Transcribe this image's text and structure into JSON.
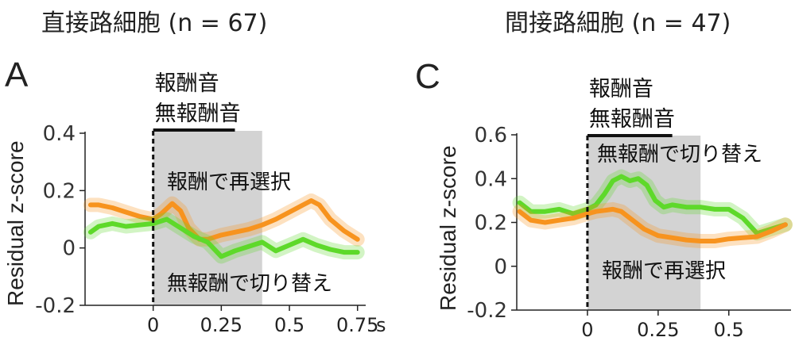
{
  "chart_data": [
    {
      "type": "line",
      "panel_letter": "A",
      "title": "直接路細胞 (n = 67)",
      "xlabel": "",
      "x_unit": "s",
      "ylabel": "Residual z-score",
      "xlim": [
        -0.25,
        0.78
      ],
      "ylim": [
        -0.2,
        0.4
      ],
      "xticks": [
        "0",
        "0.25",
        "0.5",
        "0.75"
      ],
      "xtick_values": [
        0,
        0.25,
        0.5,
        0.75
      ],
      "yticks": [
        "-0.2",
        "0",
        "0.2",
        "0.4"
      ],
      "ytick_values": [
        -0.2,
        0,
        0.2,
        0.4
      ],
      "shaded_region": [
        0,
        0.4
      ],
      "sound_bar": [
        0,
        0.3
      ],
      "onset_line_x": 0,
      "sound_labels": [
        "報酬音",
        "無報酬音"
      ],
      "series": [
        {
          "name": "報酬で再選択",
          "color": "#f7931e",
          "x": [
            -0.23,
            -0.2,
            -0.15,
            -0.1,
            -0.05,
            0,
            0.03,
            0.07,
            0.1,
            0.13,
            0.17,
            0.2,
            0.25,
            0.3,
            0.35,
            0.4,
            0.45,
            0.5,
            0.55,
            0.58,
            0.61,
            0.65,
            0.7,
            0.75
          ],
          "values": [
            0.15,
            0.15,
            0.14,
            0.125,
            0.11,
            0.1,
            0.12,
            0.155,
            0.13,
            0.07,
            0.03,
            0.03,
            0.045,
            0.055,
            0.065,
            0.08,
            0.1,
            0.125,
            0.15,
            0.165,
            0.15,
            0.1,
            0.06,
            0.03
          ]
        },
        {
          "name": "無報酬で切り替え",
          "color": "#5ed92a",
          "x": [
            -0.23,
            -0.2,
            -0.15,
            -0.1,
            -0.05,
            0,
            0.05,
            0.1,
            0.15,
            0.2,
            0.25,
            0.3,
            0.35,
            0.4,
            0.45,
            0.5,
            0.55,
            0.6,
            0.65,
            0.7,
            0.75
          ],
          "values": [
            0.055,
            0.075,
            0.085,
            0.075,
            0.08,
            0.085,
            0.1,
            0.07,
            0.04,
            0.02,
            -0.03,
            -0.01,
            0.005,
            0.02,
            -0.01,
            0.01,
            0.03,
            0.01,
            -0.005,
            -0.015,
            -0.015
          ]
        }
      ]
    },
    {
      "type": "line",
      "panel_letter": "C",
      "title": "間接路細胞 (n = 47)",
      "xlabel": "",
      "ylabel": "Residual z-score",
      "xlim": [
        -0.25,
        0.72
      ],
      "ylim": [
        -0.2,
        0.6
      ],
      "xticks": [
        "0",
        "0.25",
        "0.5"
      ],
      "xtick_values": [
        0,
        0.25,
        0.5
      ],
      "yticks": [
        "-0.2",
        "0",
        "0.2",
        "0.4",
        "0.6"
      ],
      "ytick_values": [
        -0.2,
        0,
        0.2,
        0.4,
        0.6
      ],
      "shaded_region": [
        0,
        0.4
      ],
      "sound_bar": [
        0,
        0.3
      ],
      "onset_line_x": 0,
      "sound_labels": [
        "報酬音",
        "無報酬音"
      ],
      "series": [
        {
          "name": "無報酬で切り替え",
          "color": "#5ed92a",
          "x": [
            -0.24,
            -0.2,
            -0.15,
            -0.1,
            -0.05,
            0,
            0.03,
            0.06,
            0.09,
            0.12,
            0.15,
            0.18,
            0.21,
            0.24,
            0.27,
            0.3,
            0.35,
            0.4,
            0.45,
            0.5,
            0.55,
            0.6,
            0.65,
            0.7
          ],
          "values": [
            0.29,
            0.25,
            0.25,
            0.26,
            0.24,
            0.26,
            0.28,
            0.33,
            0.39,
            0.41,
            0.39,
            0.4,
            0.37,
            0.3,
            0.27,
            0.28,
            0.27,
            0.27,
            0.26,
            0.26,
            0.22,
            0.15,
            0.17,
            0.19
          ]
        },
        {
          "name": "報酬で再選択",
          "color": "#f7931e",
          "x": [
            -0.24,
            -0.2,
            -0.15,
            -0.1,
            -0.05,
            0,
            0.03,
            0.06,
            0.09,
            0.12,
            0.15,
            0.2,
            0.25,
            0.3,
            0.35,
            0.4,
            0.45,
            0.5,
            0.55,
            0.6,
            0.65,
            0.7
          ],
          "values": [
            0.25,
            0.21,
            0.2,
            0.21,
            0.22,
            0.24,
            0.25,
            0.255,
            0.26,
            0.25,
            0.22,
            0.17,
            0.14,
            0.13,
            0.12,
            0.115,
            0.115,
            0.125,
            0.13,
            0.135,
            0.16,
            0.19
          ]
        }
      ]
    }
  ]
}
